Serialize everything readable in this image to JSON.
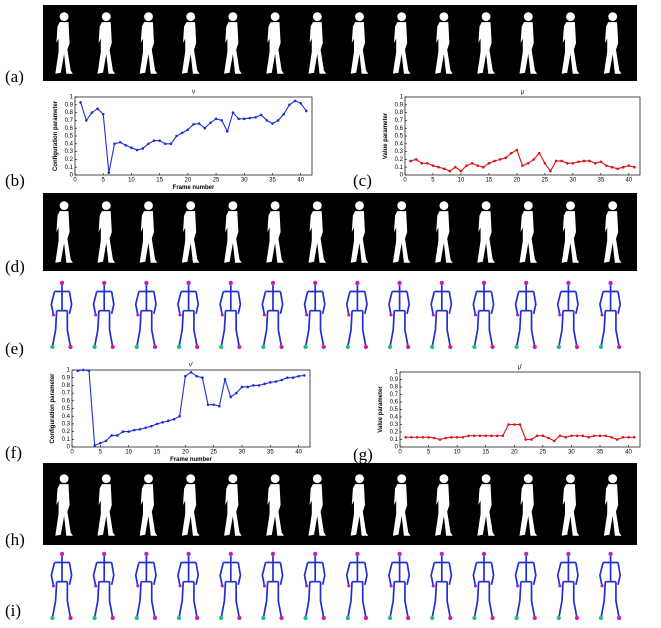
{
  "panels": [
    "(a)",
    "(b)",
    "(c)",
    "(d)",
    "(e)",
    "(f)",
    "(g)",
    "(h)",
    "(i)"
  ],
  "chart_data": [
    {
      "type": "line",
      "title": "ν",
      "xlabel": "Frame number",
      "ylabel": "Configuration parameter",
      "x": [
        1,
        2,
        3,
        4,
        5,
        6,
        7,
        8,
        9,
        10,
        11,
        12,
        13,
        14,
        15,
        16,
        17,
        18,
        19,
        20,
        21,
        22,
        23,
        24,
        25,
        26,
        27,
        28,
        29,
        30,
        31,
        32,
        33,
        34,
        35,
        36,
        37,
        38,
        39,
        40,
        41
      ],
      "series": [
        {
          "color": "#1f2fd8",
          "values": [
            0.93,
            0.7,
            0.8,
            0.85,
            0.78,
            0.03,
            0.4,
            0.42,
            0.38,
            0.35,
            0.32,
            0.34,
            0.4,
            0.44,
            0.44,
            0.4,
            0.4,
            0.5,
            0.54,
            0.58,
            0.65,
            0.66,
            0.6,
            0.67,
            0.72,
            0.7,
            0.56,
            0.8,
            0.72,
            0.72,
            0.73,
            0.74,
            0.77,
            0.7,
            0.66,
            0.7,
            0.78,
            0.9,
            0.95,
            0.92,
            0.82
          ]
        }
      ],
      "xlim": [
        0,
        42
      ],
      "xticks": [
        0,
        5,
        10,
        15,
        20,
        25,
        30,
        35,
        40
      ],
      "ylim": [
        0,
        1
      ],
      "yticks": [
        0,
        0.1,
        0.2,
        0.3,
        0.4,
        0.5,
        0.6,
        0.7,
        0.8,
        0.9,
        1
      ]
    },
    {
      "type": "line",
      "title": "μ",
      "ylabel": "Value parameter",
      "x": [
        1,
        2,
        3,
        4,
        5,
        6,
        7,
        8,
        9,
        10,
        11,
        12,
        13,
        14,
        15,
        16,
        17,
        18,
        19,
        20,
        21,
        22,
        23,
        24,
        25,
        26,
        27,
        28,
        29,
        30,
        31,
        32,
        33,
        34,
        35,
        36,
        37,
        38,
        39,
        40,
        41
      ],
      "series": [
        {
          "color": "#e01010",
          "values": [
            0.18,
            0.2,
            0.15,
            0.15,
            0.12,
            0.1,
            0.08,
            0.05,
            0.1,
            0.05,
            0.12,
            0.15,
            0.12,
            0.1,
            0.15,
            0.18,
            0.2,
            0.22,
            0.28,
            0.32,
            0.12,
            0.15,
            0.2,
            0.28,
            0.15,
            0.05,
            0.18,
            0.18,
            0.15,
            0.15,
            0.17,
            0.18,
            0.18,
            0.15,
            0.17,
            0.12,
            0.1,
            0.08,
            0.1,
            0.12,
            0.1
          ]
        }
      ],
      "xlim": [
        0,
        42
      ],
      "xticks": [
        0,
        5,
        10,
        15,
        20,
        25,
        30,
        35,
        40
      ],
      "ylim": [
        0,
        1
      ],
      "yticks": [
        0,
        0.1,
        0.2,
        0.3,
        0.4,
        0.5,
        0.6,
        0.7,
        0.8,
        0.9,
        1
      ]
    },
    {
      "type": "line",
      "title": "ν'",
      "xlabel": "Frame number",
      "ylabel": "Configuration parameter",
      "x": [
        1,
        2,
        3,
        4,
        5,
        6,
        7,
        8,
        9,
        10,
        11,
        12,
        13,
        14,
        15,
        16,
        17,
        18,
        19,
        20,
        21,
        22,
        23,
        24,
        25,
        26,
        27,
        28,
        29,
        30,
        31,
        32,
        33,
        34,
        35,
        36,
        37,
        38,
        39,
        40,
        41
      ],
      "series": [
        {
          "color": "#1f2fd8",
          "values": [
            0.99,
            1,
            0.99,
            0.02,
            0.05,
            0.08,
            0.15,
            0.15,
            0.2,
            0.2,
            0.22,
            0.23,
            0.25,
            0.27,
            0.3,
            0.32,
            0.34,
            0.36,
            0.4,
            0.92,
            0.97,
            0.92,
            0.9,
            0.55,
            0.55,
            0.53,
            0.88,
            0.65,
            0.7,
            0.78,
            0.78,
            0.8,
            0.8,
            0.82,
            0.84,
            0.85,
            0.87,
            0.9,
            0.9,
            0.92,
            0.93
          ]
        }
      ],
      "xlim": [
        0,
        42
      ],
      "xticks": [
        0,
        5,
        10,
        15,
        20,
        25,
        30,
        35,
        40
      ],
      "ylim": [
        0,
        1
      ],
      "yticks": [
        0,
        0.1,
        0.2,
        0.3,
        0.4,
        0.5,
        0.6,
        0.7,
        0.8,
        0.9,
        1
      ]
    },
    {
      "type": "line",
      "title": "μ'",
      "ylabel": "Value parameter",
      "x": [
        1,
        2,
        3,
        4,
        5,
        6,
        7,
        8,
        9,
        10,
        11,
        12,
        13,
        14,
        15,
        16,
        17,
        18,
        19,
        20,
        21,
        22,
        23,
        24,
        25,
        26,
        27,
        28,
        29,
        30,
        31,
        32,
        33,
        34,
        35,
        36,
        37,
        38,
        39,
        40,
        41
      ],
      "series": [
        {
          "color": "#e01010",
          "values": [
            0.13,
            0.13,
            0.13,
            0.13,
            0.13,
            0.12,
            0.1,
            0.12,
            0.13,
            0.13,
            0.13,
            0.15,
            0.15,
            0.15,
            0.15,
            0.15,
            0.15,
            0.15,
            0.3,
            0.3,
            0.3,
            0.1,
            0.1,
            0.15,
            0.15,
            0.12,
            0.08,
            0.15,
            0.13,
            0.15,
            0.15,
            0.15,
            0.13,
            0.15,
            0.15,
            0.15,
            0.13,
            0.1,
            0.13,
            0.13,
            0.13
          ]
        }
      ],
      "xlim": [
        0,
        42
      ],
      "xticks": [
        0,
        5,
        10,
        15,
        20,
        25,
        30,
        35,
        40
      ],
      "ylim": [
        0,
        1
      ],
      "yticks": [
        0,
        0.1,
        0.2,
        0.3,
        0.4,
        0.5,
        0.6,
        0.7,
        0.8,
        0.9,
        1
      ]
    }
  ]
}
